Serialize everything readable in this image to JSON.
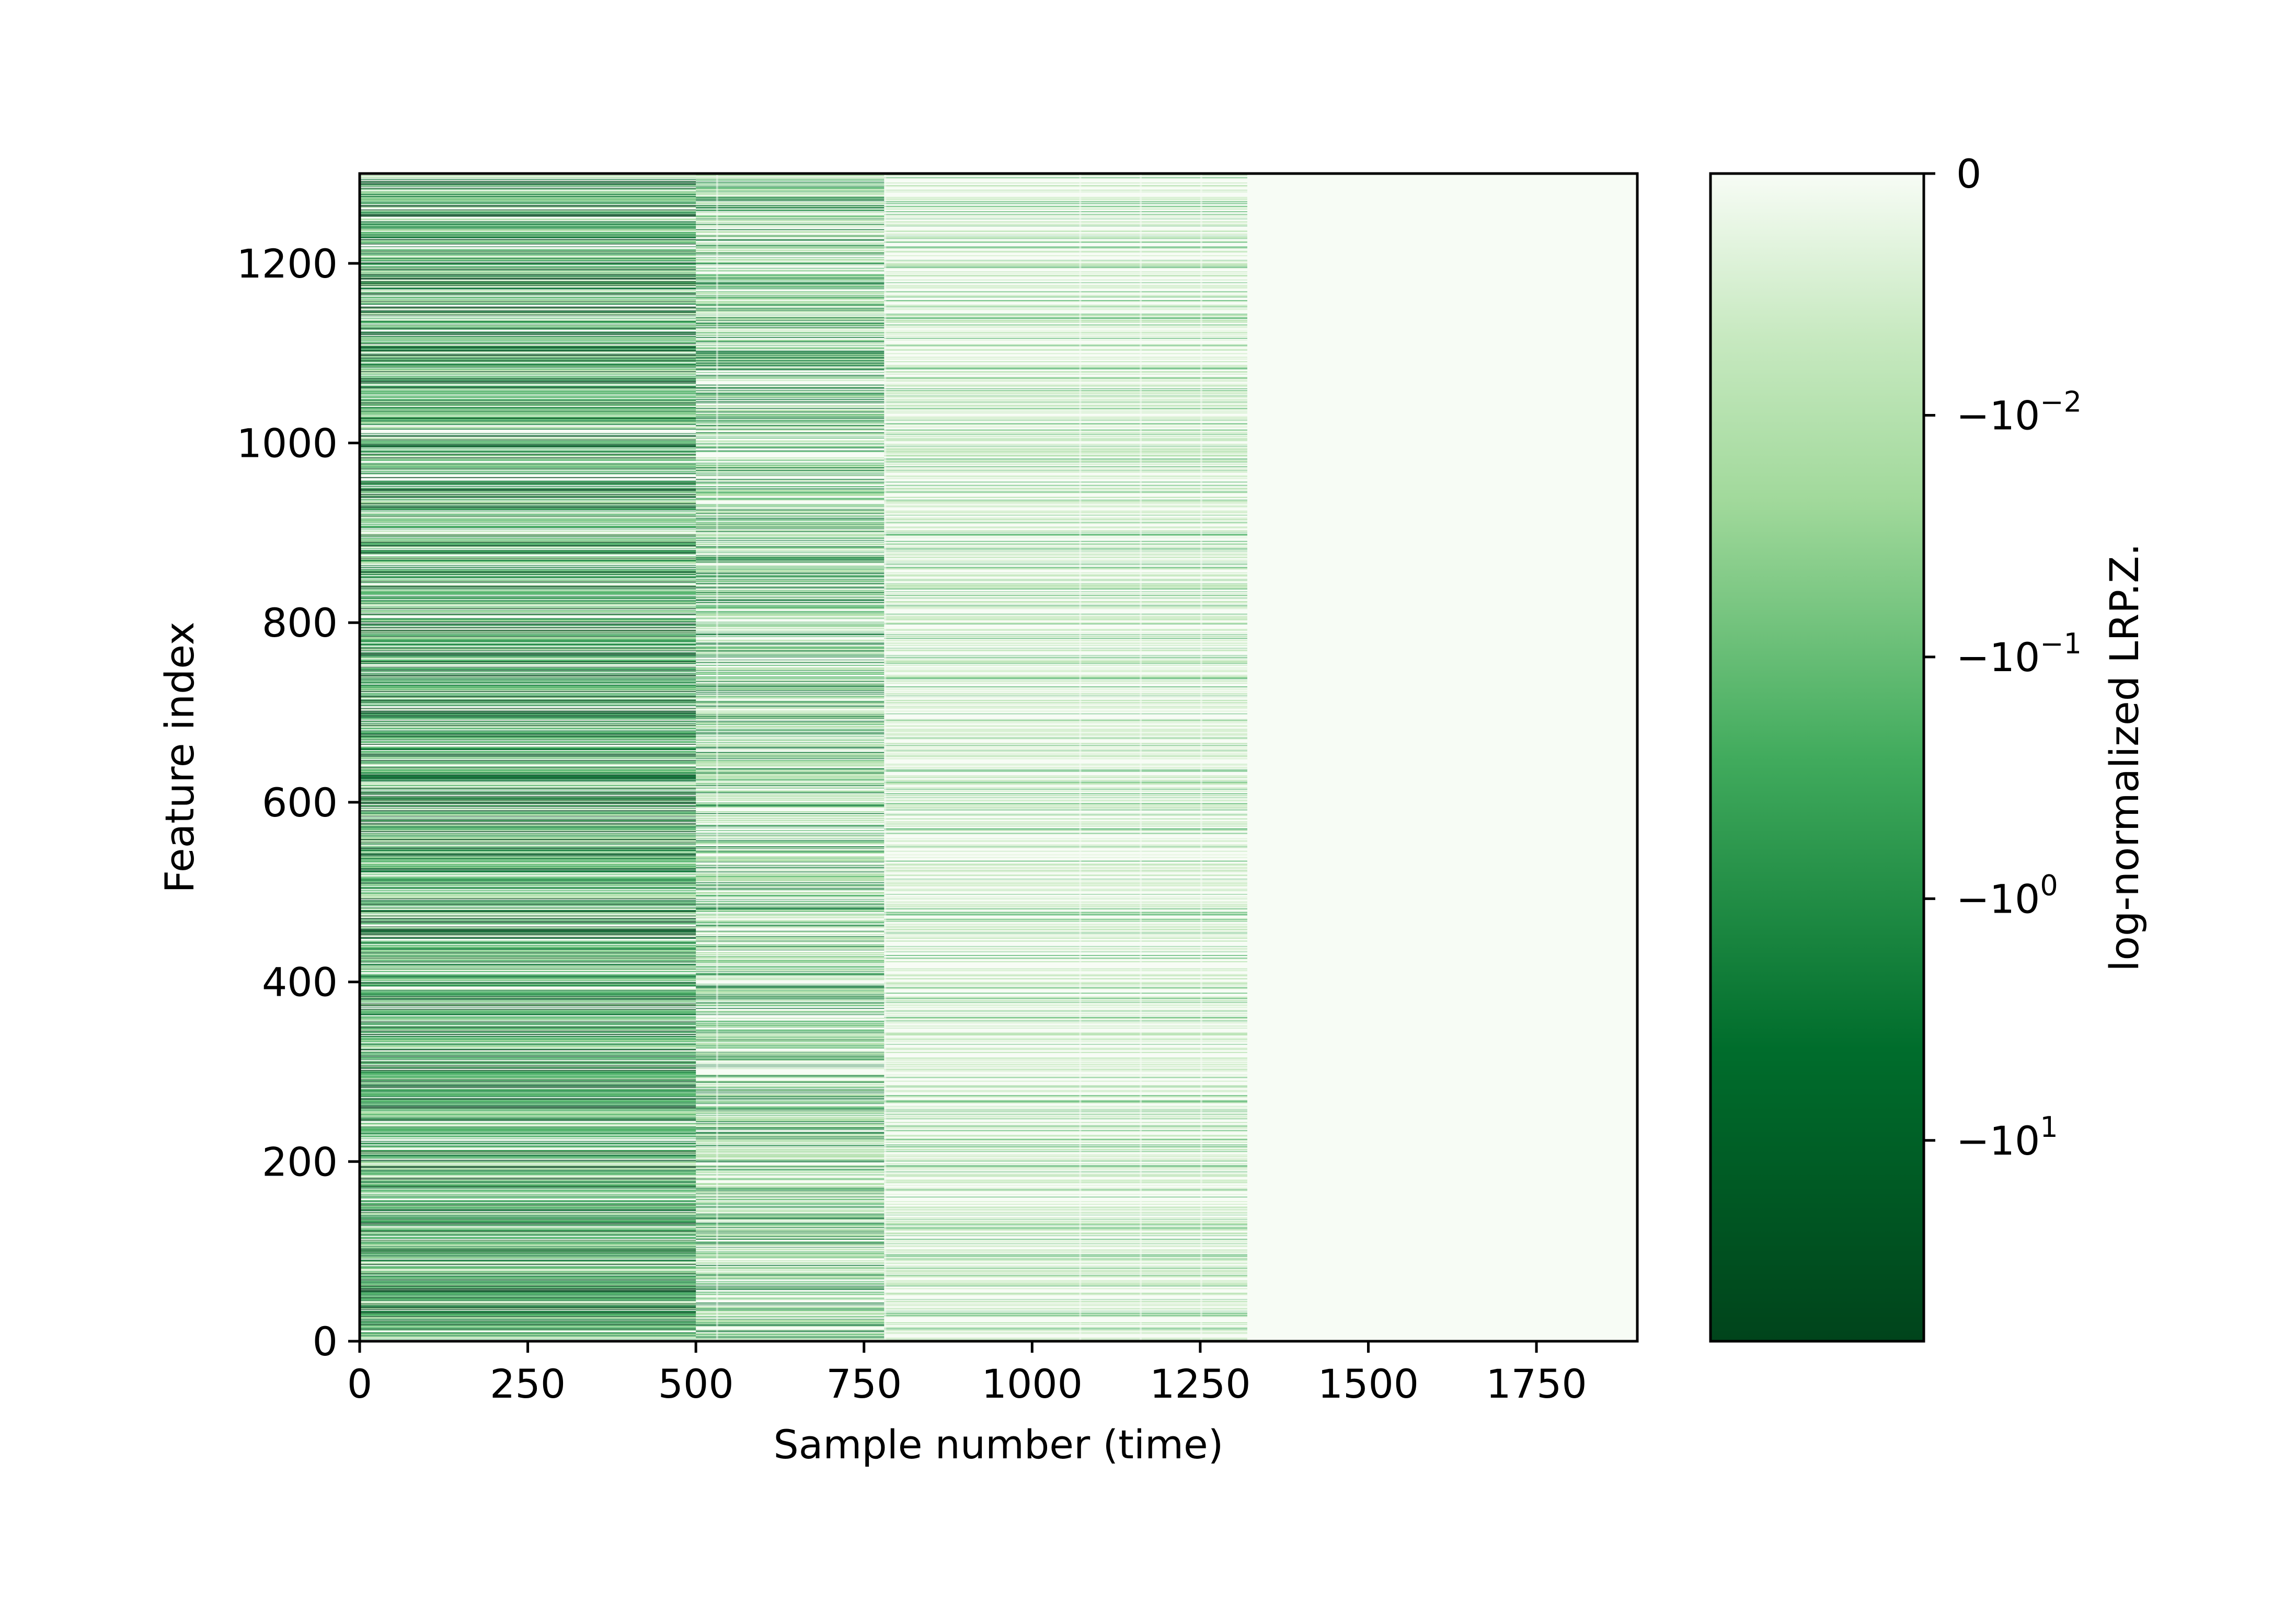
{
  "chart_data": {
    "type": "heatmap",
    "title": "",
    "xlabel": "Sample number (time)",
    "ylabel": "Feature index",
    "xlim": [
      0,
      1900
    ],
    "ylim": [
      0,
      1300
    ],
    "xticks": [
      0,
      250,
      500,
      750,
      1000,
      1250,
      1500,
      1750
    ],
    "yticks": [
      0,
      200,
      400,
      600,
      800,
      1000,
      1200
    ],
    "grid": false,
    "colormap": "Greens_r",
    "colors": {
      "darkest": "#00441b",
      "dark": "#006d2c",
      "mid": "#41ab5d",
      "light": "#a1d99b",
      "lighter": "#c7e9c0",
      "lightest": "#f7fcf5"
    },
    "data_extent": {
      "samples_with_nonzero_relevance": [
        0,
        1320
      ],
      "feature_count": 1300
    },
    "regions": [
      {
        "x": [
          0,
          500
        ],
        "level": "dense dark-green horizontal bands"
      },
      {
        "x": [
          500,
          780
        ],
        "level": "medium-green bands"
      },
      {
        "x": [
          780,
          1320
        ],
        "level": "light-green sparse bands"
      },
      {
        "x": [
          1320,
          1900
        ],
        "level": "uniform near-zero (lightest)"
      }
    ],
    "colorbar": {
      "label": "log-normalized LRP.Z.",
      "scale": "symlog",
      "ticks": [
        "0",
        "-10^-2",
        "-10^-1",
        "-10^0",
        "-10^1"
      ],
      "tick_labels": [
        {
          "base": "0",
          "exp": ""
        },
        {
          "base": "−10",
          "exp": "−2"
        },
        {
          "base": "−10",
          "exp": "−1"
        },
        {
          "base": "−10",
          "exp": "0"
        },
        {
          "base": "−10",
          "exp": "1"
        }
      ]
    }
  }
}
